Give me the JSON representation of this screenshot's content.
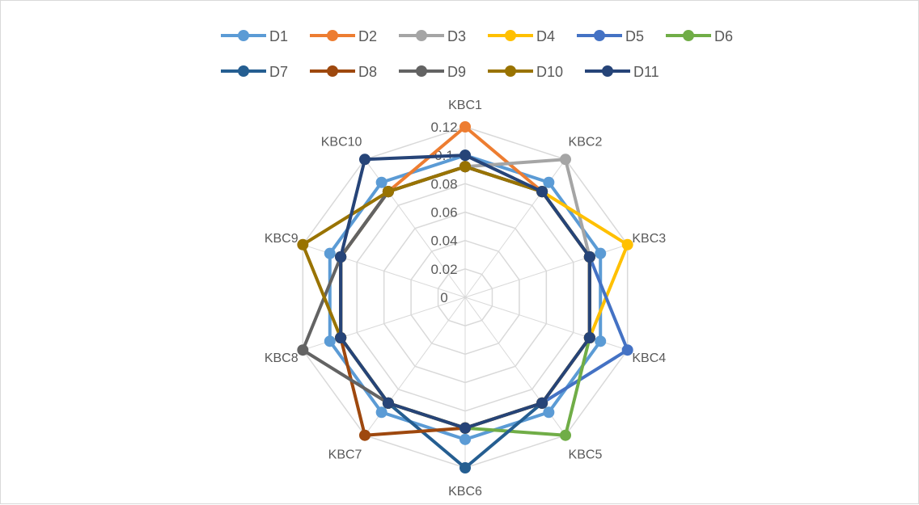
{
  "chart_data": {
    "type": "radar",
    "title": "",
    "categories": [
      "KBC1",
      "KBC2",
      "KBC3",
      "KBC4",
      "KBC5",
      "KBC6",
      "KBC7",
      "KBC8",
      "KBC9",
      "KBC10"
    ],
    "rlim": [
      0,
      0.12
    ],
    "ticks": [
      "0",
      "0.02",
      "0.04",
      "0.06",
      "0.08",
      "0.1",
      "0.12"
    ],
    "tick_values": [
      0,
      0.02,
      0.04,
      0.06,
      0.08,
      0.1,
      0.12
    ],
    "grid": true,
    "legend_position": "top",
    "series": [
      {
        "name": "D1",
        "color": "#5B9BD5",
        "values": [
          0.1,
          0.1,
          0.1,
          0.1,
          0.1,
          0.1,
          0.1,
          0.1,
          0.1,
          0.1
        ]
      },
      {
        "name": "D2",
        "color": "#ED7D31",
        "values": [
          0.12,
          0.092,
          0.092,
          0.092,
          0.092,
          0.092,
          0.092,
          0.092,
          0.092,
          0.092
        ]
      },
      {
        "name": "D3",
        "color": "#A5A5A5",
        "values": [
          0.092,
          0.12,
          0.092,
          0.092,
          0.092,
          0.092,
          0.092,
          0.092,
          0.092,
          0.092
        ]
      },
      {
        "name": "D4",
        "color": "#FFC000",
        "values": [
          0.092,
          0.092,
          0.12,
          0.092,
          0.092,
          0.092,
          0.092,
          0.092,
          0.092,
          0.092
        ]
      },
      {
        "name": "D5",
        "color": "#4472C4",
        "values": [
          0.092,
          0.092,
          0.092,
          0.12,
          0.092,
          0.092,
          0.092,
          0.092,
          0.092,
          0.092
        ]
      },
      {
        "name": "D6",
        "color": "#70AD47",
        "values": [
          0.092,
          0.092,
          0.092,
          0.092,
          0.12,
          0.092,
          0.092,
          0.092,
          0.092,
          0.092
        ]
      },
      {
        "name": "D7",
        "color": "#255E91",
        "values": [
          0.092,
          0.092,
          0.092,
          0.092,
          0.092,
          0.12,
          0.092,
          0.092,
          0.092,
          0.092
        ]
      },
      {
        "name": "D8",
        "color": "#9E480E",
        "values": [
          0.092,
          0.092,
          0.092,
          0.092,
          0.092,
          0.092,
          0.12,
          0.092,
          0.092,
          0.092
        ]
      },
      {
        "name": "D9",
        "color": "#636363",
        "values": [
          0.092,
          0.092,
          0.092,
          0.092,
          0.092,
          0.092,
          0.092,
          0.12,
          0.092,
          0.092
        ]
      },
      {
        "name": "D10",
        "color": "#997300",
        "values": [
          0.092,
          0.092,
          0.092,
          0.092,
          0.092,
          0.092,
          0.092,
          0.092,
          0.12,
          0.092
        ]
      },
      {
        "name": "D11",
        "color": "#264478",
        "values": [
          0.1,
          0.092,
          0.092,
          0.092,
          0.092,
          0.092,
          0.092,
          0.092,
          0.092,
          0.12
        ]
      }
    ]
  }
}
